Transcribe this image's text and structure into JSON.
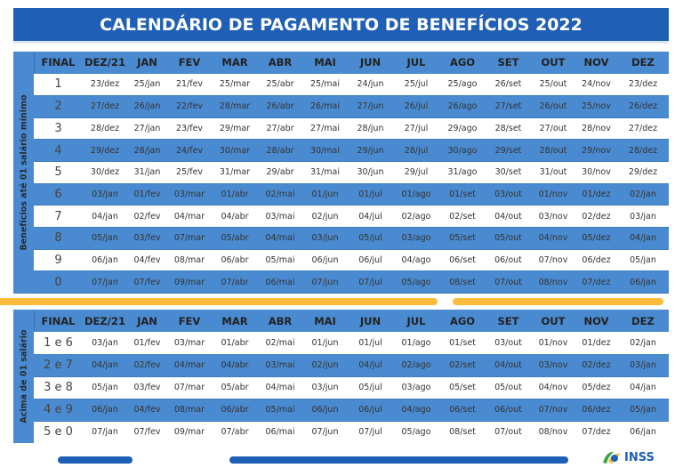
{
  "title": "CALENDÁRIO DE PAGAMENTO DE BENEFÍCIOS 2022",
  "headers": [
    "FINAL",
    "DEZ/21",
    "JAN",
    "FEV",
    "MAR",
    "ABR",
    "MAI",
    "JUN",
    "JUL",
    "AGO",
    "SET",
    "OUT",
    "NOV",
    "DEZ"
  ],
  "table1": {
    "side_label": "Benefícios até 01 salário mínimo",
    "rows": [
      [
        "1",
        "23/dez",
        "25/jan",
        "21/fev",
        "25/mar",
        "25/abr",
        "25/mai",
        "24/jun",
        "25/jul",
        "25/ago",
        "26/set",
        "25/out",
        "24/nov",
        "23/dez"
      ],
      [
        "2",
        "27/dez",
        "26/jan",
        "22/fev",
        "28/mar",
        "26/abr",
        "26/mai",
        "27/jun",
        "26/jul",
        "26/ago",
        "27/set",
        "26/out",
        "25/nov",
        "26/dez"
      ],
      [
        "3",
        "28/dez",
        "27/jan",
        "23/fev",
        "29/mar",
        "27/abr",
        "27/mai",
        "28/jun",
        "27/jul",
        "29/ago",
        "28/set",
        "27/out",
        "28/nov",
        "27/dez"
      ],
      [
        "4",
        "29/dez",
        "28/jan",
        "24/fev",
        "30/mar",
        "28/abr",
        "30/mai",
        "29/jun",
        "28/jul",
        "30/ago",
        "29/set",
        "28/out",
        "29/nov",
        "28/dez"
      ],
      [
        "5",
        "30/dez",
        "31/jan",
        "25/fev",
        "31/mar",
        "29/abr",
        "31/mai",
        "30/jun",
        "29/jul",
        "31/ago",
        "30/set",
        "31/out",
        "30/nov",
        "29/dez"
      ],
      [
        "6",
        "03/jan",
        "01/fev",
        "03/mar",
        "01/abr",
        "02/mai",
        "01/jun",
        "01/jul",
        "01/ago",
        "01/set",
        "03/out",
        "01/nov",
        "01/dez",
        "02/jan"
      ],
      [
        "7",
        "04/jan",
        "02/fev",
        "04/mar",
        "04/abr",
        "03/mai",
        "02/jun",
        "04/jul",
        "02/ago",
        "02/set",
        "04/out",
        "03/nov",
        "02/dez",
        "03/jan"
      ],
      [
        "8",
        "05/jan",
        "03/fev",
        "07/mar",
        "05/abr",
        "04/mai",
        "03/jun",
        "05/jul",
        "03/ago",
        "05/set",
        "05/out",
        "04/nov",
        "05/dez",
        "04/jan"
      ],
      [
        "9",
        "06/jan",
        "04/fev",
        "08/mar",
        "06/abr",
        "05/mai",
        "06/jun",
        "06/jul",
        "04/ago",
        "06/set",
        "06/out",
        "07/nov",
        "06/dez",
        "05/jan"
      ],
      [
        "0",
        "07/jan",
        "07/fev",
        "09/mar",
        "07/abr",
        "06/mai",
        "07/jun",
        "07/jul",
        "05/ago",
        "08/set",
        "07/out",
        "08/nov",
        "07/dez",
        "06/jan"
      ]
    ]
  },
  "table2": {
    "side_label": "Acima de 01 salário",
    "rows": [
      [
        "1 e 6",
        "03/jan",
        "01/fev",
        "03/mar",
        "01/abr",
        "02/mai",
        "01/jun",
        "01/jul",
        "01/ago",
        "01/set",
        "03/out",
        "01/nov",
        "01/dez",
        "02/jan"
      ],
      [
        "2 e 7",
        "04/jan",
        "02/fev",
        "04/mar",
        "04/abr",
        "03/mai",
        "02/jun",
        "04/jul",
        "02/ago",
        "02/set",
        "04/out",
        "03/nov",
        "02/dez",
        "03/jan"
      ],
      [
        "3 e 8",
        "05/jan",
        "03/fev",
        "07/mar",
        "05/abr",
        "04/mai",
        "03/jun",
        "05/jul",
        "03/ago",
        "05/set",
        "05/out",
        "04/nov",
        "05/dez",
        "04/jan"
      ],
      [
        "4 e 9",
        "06/jan",
        "04/fev",
        "08/mar",
        "06/abr",
        "05/mai",
        "06/jun",
        "06/jul",
        "04/ago",
        "06/set",
        "06/out",
        "07/nov",
        "06/dez",
        "05/jan"
      ],
      [
        "5 e 0",
        "07/jan",
        "07/fev",
        "09/mar",
        "07/abr",
        "06/mai",
        "07/jun",
        "07/jul",
        "05/ago",
        "08/set",
        "07/out",
        "08/nov",
        "07/dez",
        "06/jan"
      ]
    ]
  },
  "logo": {
    "text": "INSS",
    "icon": "inss-logo-icon"
  },
  "colors": {
    "title_bg": "#1f5fb5",
    "row_blue": "#4a8ad0",
    "accent_orange": "#fbbc3c",
    "bar_blue": "#1f5fb5"
  }
}
